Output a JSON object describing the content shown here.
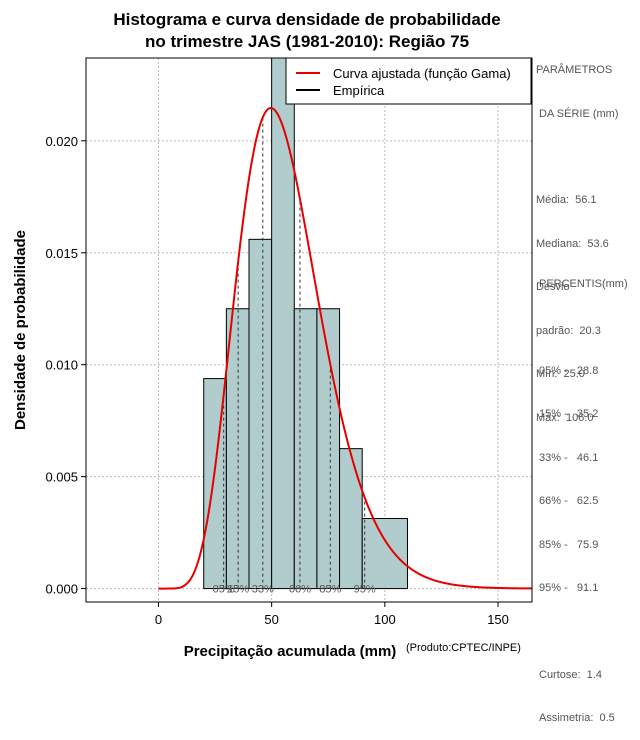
{
  "chart_data": {
    "type": "bar",
    "title": [
      "Histograma e curva densidade de probabilidade",
      "no trimestre JAS (1981-2010): Região 75"
    ],
    "xlabel": "Precipitação acumulada (mm)",
    "ylabel": "Densidade de probabilidade",
    "credit": "(Produto:CPTEC/INPE)",
    "xlim": [
      -32,
      165
    ],
    "ylim": [
      -0.0006,
      0.0237
    ],
    "xticks": [
      0,
      50,
      100,
      150
    ],
    "xtick_labels": [
      "0",
      "50",
      "100",
      "150"
    ],
    "yticks": [
      0,
      0.005,
      0.01,
      0.015,
      0.02
    ],
    "ytick_labels": [
      "0.000",
      "0.005",
      "0.010",
      "0.015",
      "0.020"
    ],
    "grid": true,
    "bar_color": "#b0cccc",
    "curve_color": "#e60000",
    "histogram": [
      {
        "x0": 20,
        "x1": 30,
        "density": 0.00938
      },
      {
        "x0": 30,
        "x1": 40,
        "density": 0.0125
      },
      {
        "x0": 40,
        "x1": 50,
        "density": 0.0156
      },
      {
        "x0": 50,
        "x1": 60,
        "density": 0.0237
      },
      {
        "x0": 60,
        "x1": 70,
        "density": 0.0125
      },
      {
        "x0": 70,
        "x1": 80,
        "density": 0.0125
      },
      {
        "x0": 80,
        "x1": 90,
        "density": 0.00625
      },
      {
        "x0": 90,
        "x1": 110,
        "density": 0.00313
      }
    ],
    "fitted_curve": {
      "name": "Curva ajustada (função Gama)",
      "distribution": "gamma",
      "shape": 8.3,
      "scale": 6.8,
      "x_range": [
        0,
        165
      ]
    },
    "empirical_name": "Empírica",
    "percentiles": [
      {
        "label": "05%",
        "value": 28.8
      },
      {
        "label": "15%",
        "value": 35.2
      },
      {
        "label": "33%",
        "value": 46.1
      },
      {
        "label": "66%",
        "value": 62.5
      },
      {
        "label": "85%",
        "value": 75.9
      },
      {
        "label": "95%",
        "value": 91.1
      }
    ],
    "legend_position": "top-right"
  },
  "params_panel": {
    "heading_line1": "PARÂMETROS",
    "heading_line2": " DA SÉRIE (mm)",
    "media": "Média:  56.1",
    "mediana": "Mediana:  53.6",
    "desvio_line1": "Desvio",
    "desvio_line2": "padrão:  20.3",
    "min": "Mín:  25.0",
    "max": "Máx:  106.0"
  },
  "percentis_panel": {
    "heading": "PERCENTIS(mm)",
    "rows": [
      "05% -   28.8",
      "15% -   35.2",
      "33% -   46.1",
      "66% -   62.5",
      "85% -   75.9",
      "95% -   91.1"
    ],
    "curtose": "Curtose:  1.4",
    "assimetria": "Assimetria:  0.5"
  }
}
